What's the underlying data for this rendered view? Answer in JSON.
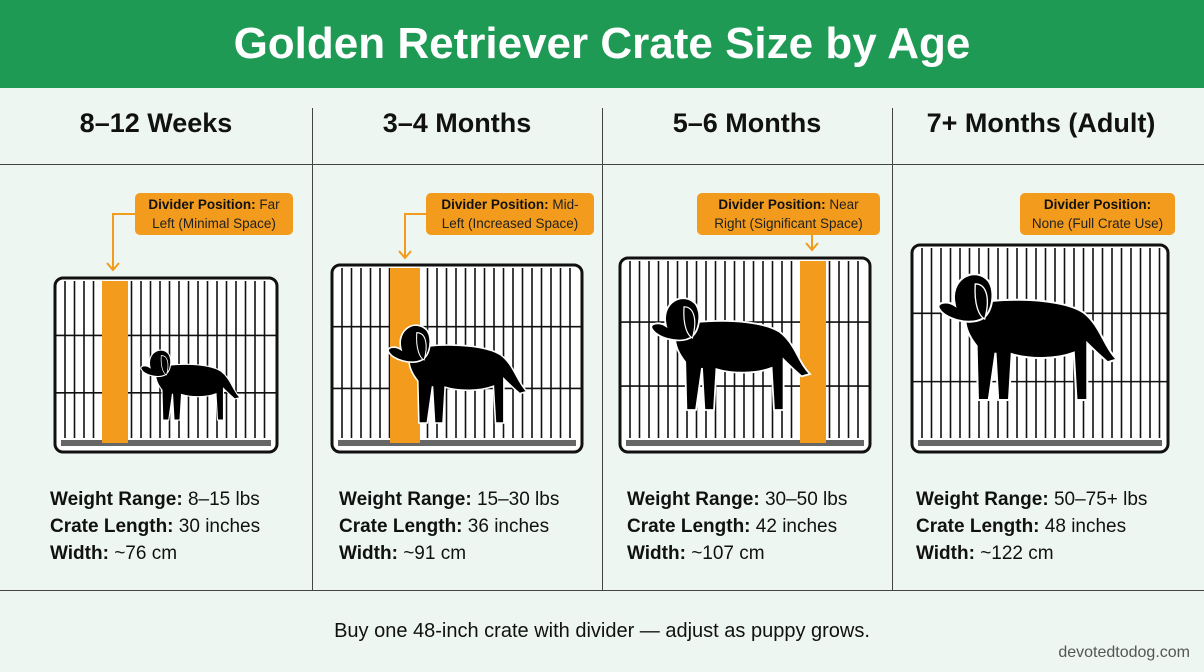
{
  "title": "Golden Retriever Crate Size by Age",
  "accent": "#1f9a55",
  "divider_color": "#f29b1c",
  "columns": [
    {
      "heading": "8–12 Weeks",
      "callout_label": "Divider Position:",
      "callout_value": "Far Left (Minimal Space)",
      "weight_label": "Weight Range:",
      "weight": "8–15 lbs",
      "length_label": "Crate Length:",
      "length": "30 inches",
      "width_label": "Width:",
      "width": "~76 cm"
    },
    {
      "heading": "3–4 Months",
      "callout_label": "Divider Position:",
      "callout_value": "Mid-Left (Increased Space)",
      "weight_label": "Weight Range:",
      "weight": "15–30 lbs",
      "length_label": "Crate Length:",
      "length": "36 inches",
      "width_label": "Width:",
      "width": "~91 cm"
    },
    {
      "heading": "5–6 Months",
      "callout_label": "Divider Position:",
      "callout_value": "Near Right (Significant Space)",
      "weight_label": "Weight Range:",
      "weight": "30–50 lbs",
      "length_label": "Crate Length:",
      "length": "42 inches",
      "width_label": "Width:",
      "width": "~107 cm"
    },
    {
      "heading": "7+ Months (Adult)",
      "callout_label": "Divider Position:",
      "callout_value": "None (Full Crate Use)",
      "weight_label": "Weight Range:",
      "weight": "50–75+ lbs",
      "length_label": "Crate Length:",
      "length": "48 inches",
      "width_label": "Width:",
      "width": "~122 cm"
    }
  ],
  "footer": "Buy one 48-inch crate with divider — adjust as puppy grows.",
  "watermark": "devotedtodog.com"
}
